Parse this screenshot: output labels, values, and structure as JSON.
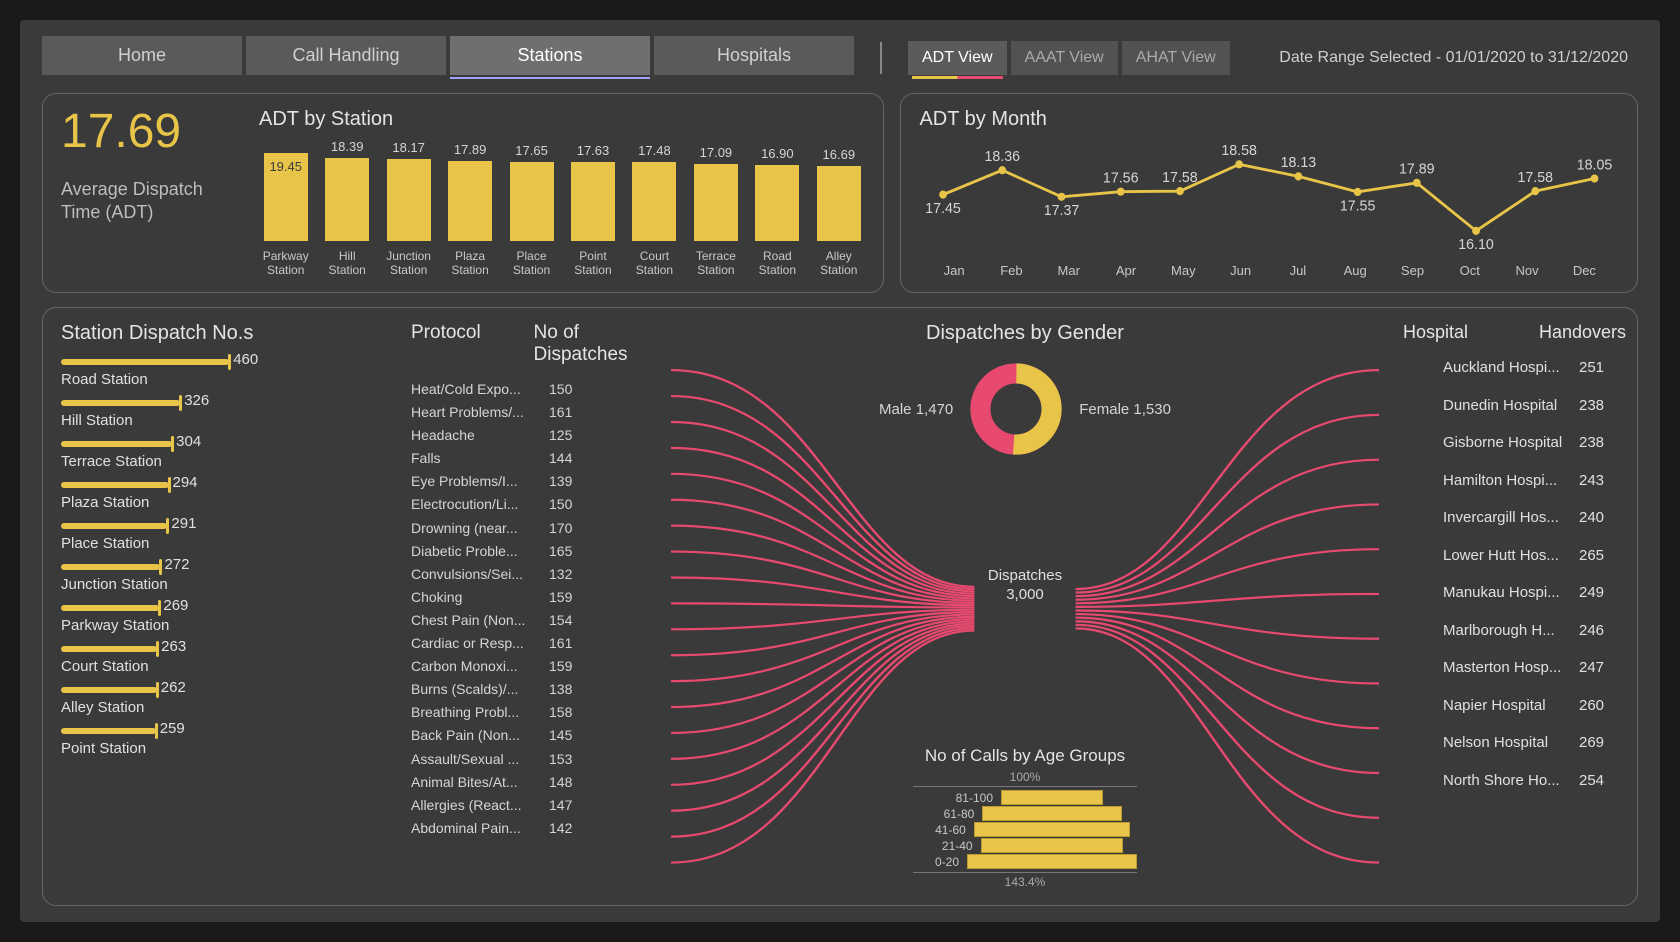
{
  "colors": {
    "accent_yellow": "#e8c549",
    "accent_pink": "#e84a6f",
    "panel_bg": "#3a3a3a",
    "panel_border": "#666666",
    "text_primary": "#e4e4e4",
    "text_secondary": "#c8c8c8"
  },
  "nav": {
    "tabs": [
      {
        "label": "Home",
        "active": false
      },
      {
        "label": "Call Handling",
        "active": false
      },
      {
        "label": "Stations",
        "active": true
      },
      {
        "label": "Hospitals",
        "active": false
      }
    ],
    "views": [
      {
        "label": "ADT View",
        "active": true
      },
      {
        "label": "AAAT View",
        "active": false
      },
      {
        "label": "AHAT View",
        "active": false
      }
    ],
    "date_range": "Date Range Selected - 01/01/2020 to 31/12/2020"
  },
  "kpi": {
    "value": "17.69",
    "label": "Average Dispatch Time (ADT)"
  },
  "adt_by_station": {
    "title": "ADT by Station",
    "type": "bar",
    "bar_color": "#e8c549",
    "value_fontsize": 13,
    "categories": [
      "Parkway Station",
      "Hill Station",
      "Junction Station",
      "Plaza Station",
      "Place Station",
      "Point Station",
      "Court Station",
      "Terrace Station",
      "Road Station",
      "Alley Station"
    ],
    "values": [
      19.45,
      18.39,
      18.17,
      17.89,
      17.65,
      17.63,
      17.48,
      17.09,
      16.9,
      16.69
    ],
    "ylim": [
      0,
      20
    ]
  },
  "adt_by_month": {
    "title": "ADT by Month",
    "type": "line",
    "line_color": "#e8c549",
    "line_width": 2.5,
    "marker": "circle",
    "marker_size": 5,
    "categories": [
      "Jan",
      "Feb",
      "Mar",
      "Apr",
      "May",
      "Jun",
      "Jul",
      "Aug",
      "Sep",
      "Oct",
      "Nov",
      "Dec"
    ],
    "values": [
      17.45,
      18.36,
      17.37,
      17.56,
      17.58,
      18.58,
      18.13,
      17.55,
      17.89,
      16.1,
      17.58,
      18.05
    ],
    "ylim": [
      15.5,
      19.0
    ]
  },
  "station_dispatch": {
    "title": "Station Dispatch No.s",
    "bar_color": "#e8c549",
    "max": 460,
    "items": [
      {
        "name": "Road Station",
        "value": 460
      },
      {
        "name": "Hill Station",
        "value": 326
      },
      {
        "name": "Terrace Station",
        "value": 304
      },
      {
        "name": "Plaza Station",
        "value": 294
      },
      {
        "name": "Place Station",
        "value": 291
      },
      {
        "name": "Junction Station",
        "value": 272
      },
      {
        "name": "Parkway Station",
        "value": 269
      },
      {
        "name": "Court Station",
        "value": 263
      },
      {
        "name": "Alley Station",
        "value": 262
      },
      {
        "name": "Point Station",
        "value": 259
      }
    ]
  },
  "protocol": {
    "header1": "Protocol",
    "header2": "No of Dispatches",
    "rows": [
      {
        "name": "Heat/Cold Expo...",
        "value": 150
      },
      {
        "name": "Heart Problems/...",
        "value": 161
      },
      {
        "name": "Headache",
        "value": 125
      },
      {
        "name": "Falls",
        "value": 144
      },
      {
        "name": "Eye Problems/I...",
        "value": 139
      },
      {
        "name": "Electrocution/Li...",
        "value": 150
      },
      {
        "name": "Drowning (near...",
        "value": 170
      },
      {
        "name": "Diabetic Proble...",
        "value": 165
      },
      {
        "name": "Convulsions/Sei...",
        "value": 132
      },
      {
        "name": "Choking",
        "value": 159
      },
      {
        "name": "Chest Pain (Non...",
        "value": 154
      },
      {
        "name": "Cardiac or Resp...",
        "value": 161
      },
      {
        "name": "Carbon Monoxi...",
        "value": 159
      },
      {
        "name": "Burns (Scalds)/...",
        "value": 138
      },
      {
        "name": "Breathing Probl...",
        "value": 158
      },
      {
        "name": "Back Pain (Non...",
        "value": 145
      },
      {
        "name": "Assault/Sexual ...",
        "value": 153
      },
      {
        "name": "Animal Bites/At...",
        "value": 148
      },
      {
        "name": "Allergies (React...",
        "value": 147
      },
      {
        "name": "Abdominal Pain...",
        "value": 142
      }
    ]
  },
  "gender": {
    "title": "Dispatches by Gender",
    "male_label": "Male 1,470",
    "female_label": "Female 1,530",
    "male_value": 1470,
    "female_value": 1530,
    "male_color": "#e84a6f",
    "female_color": "#e8c549"
  },
  "dispatches_center": {
    "label": "Dispatches",
    "value": "3,000"
  },
  "flow": {
    "line_color": "#e84a6f",
    "line_width": 2
  },
  "age_groups": {
    "title": "No of Calls by Age Groups",
    "top_label": "100%",
    "bottom_label": "143.4%",
    "bar_color": "#e8c549",
    "rows": [
      {
        "label": "81-100",
        "width_pct": 60
      },
      {
        "label": "61-80",
        "width_pct": 82
      },
      {
        "label": "41-60",
        "width_pct": 92
      },
      {
        "label": "21-40",
        "width_pct": 84
      },
      {
        "label": "0-20",
        "width_pct": 100
      }
    ]
  },
  "hospital": {
    "header1": "Hospital",
    "header2": "Handovers",
    "rows": [
      {
        "name": "Auckland Hospi...",
        "value": 251
      },
      {
        "name": "Dunedin Hospital",
        "value": 238
      },
      {
        "name": "Gisborne Hospital",
        "value": 238
      },
      {
        "name": "Hamilton Hospi...",
        "value": 243
      },
      {
        "name": "Invercargill Hos...",
        "value": 240
      },
      {
        "name": "Lower Hutt Hos...",
        "value": 265
      },
      {
        "name": "Manukau Hospi...",
        "value": 249
      },
      {
        "name": "Marlborough H...",
        "value": 246
      },
      {
        "name": "Masterton Hosp...",
        "value": 247
      },
      {
        "name": "Napier Hospital",
        "value": 260
      },
      {
        "name": "Nelson Hospital",
        "value": 269
      },
      {
        "name": "North Shore Ho...",
        "value": 254
      }
    ]
  }
}
